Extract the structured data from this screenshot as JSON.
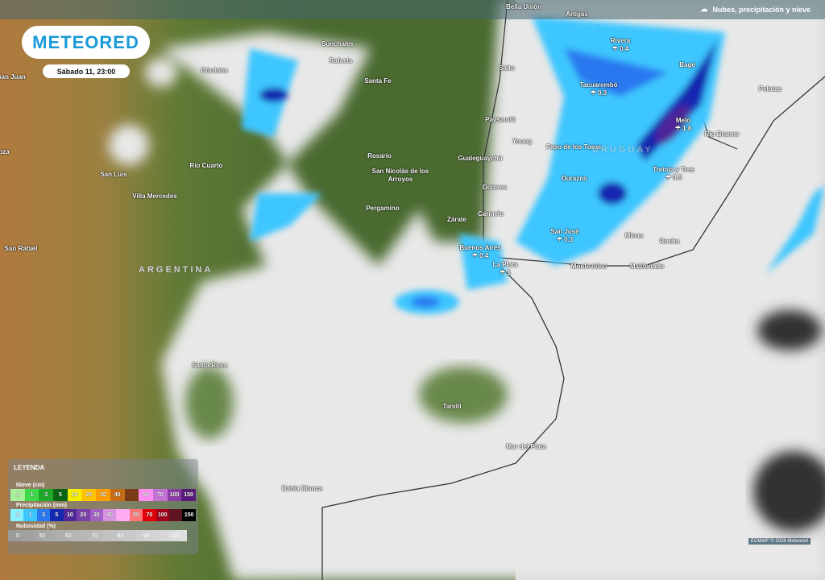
{
  "header": {
    "layer_title": "Nubes, precipitación y nieve",
    "layer_icon": "cloud-rain-icon"
  },
  "brand": {
    "logo": "METEORED",
    "datetime": "Sábado 11, 23:00"
  },
  "map": {
    "countries": [
      "ARGENTINA",
      "URUGUAY"
    ],
    "cities": [
      {
        "name": "Bella Unión"
      },
      {
        "name": "Artigas"
      },
      {
        "name": "Rivera",
        "precip": "0.4"
      },
      {
        "name": "Bagé"
      },
      {
        "name": "Pelotas"
      },
      {
        "name": "Salto"
      },
      {
        "name": "Tacuarembó",
        "precip": "0.3"
      },
      {
        "name": "Paysandú"
      },
      {
        "name": "Melo",
        "precip": "1.8"
      },
      {
        "name": "Young"
      },
      {
        "name": "Río Branco"
      },
      {
        "name": "Paso de los Toros"
      },
      {
        "name": "Gualeguaychú"
      },
      {
        "name": "Treinta y Tres",
        "precip": "0.5"
      },
      {
        "name": "Durazno"
      },
      {
        "name": "Dolores"
      },
      {
        "name": "Carmelo"
      },
      {
        "name": "Zárate"
      },
      {
        "name": "San José",
        "precip": "0.3"
      },
      {
        "name": "Minas"
      },
      {
        "name": "Rocha"
      },
      {
        "name": "Buenos Aires",
        "precip": "0.4"
      },
      {
        "name": "La Plata",
        "precip": "1"
      },
      {
        "name": "Montevideo"
      },
      {
        "name": "Maldonado"
      },
      {
        "name": "Sunchales"
      },
      {
        "name": "Rafaela"
      },
      {
        "name": "Córdoba"
      },
      {
        "name": "Santa Fe"
      },
      {
        "name": "San Juan"
      },
      {
        "name": "Rosario"
      },
      {
        "name": "San Nicolás de los Arroyos"
      },
      {
        "name": "Río Cuarto"
      },
      {
        "name": "San Luis"
      },
      {
        "name": "Villa Mercedes"
      },
      {
        "name": "Pergamino"
      },
      {
        "name": "San Rafael"
      },
      {
        "name": "Santa Rosa"
      },
      {
        "name": "Tandil"
      },
      {
        "name": "Mar del Plata"
      },
      {
        "name": "Bahía Blanca"
      },
      {
        "name": "oza"
      }
    ],
    "precip_icon": "rain-icon"
  },
  "legend": {
    "title": "LEYENDA",
    "snow": {
      "label": "Nieve (cm)",
      "steps": [
        {
          "v": ".2",
          "c": "#a8f09a"
        },
        {
          "v": "1",
          "c": "#3ed84a"
        },
        {
          "v": "3",
          "c": "#1fa82a"
        },
        {
          "v": "5",
          "c": "#0a6612"
        },
        {
          "v": "10",
          "c": "#f6f000"
        },
        {
          "v": "20",
          "c": "#ffc400"
        },
        {
          "v": "30",
          "c": "#ff9e00"
        },
        {
          "v": "40",
          "c": "#c46c18"
        },
        {
          "v": "",
          "c": "#7a3c16"
        },
        {
          "v": "50",
          "c": "#ff8ef0"
        },
        {
          "v": "70",
          "c": "#c272d4"
        },
        {
          "v": "100",
          "c": "#8a3ea4"
        },
        {
          "v": "150",
          "c": "#571a78"
        }
      ]
    },
    "precip": {
      "label": "Precipitación (mm)",
      "steps": [
        {
          "v": ".2",
          "c": "#8af2ff"
        },
        {
          "v": "1",
          "c": "#3cc6ff"
        },
        {
          "v": "3",
          "c": "#2a78f0"
        },
        {
          "v": "5",
          "c": "#1428b0"
        },
        {
          "v": "10",
          "c": "#50289a"
        },
        {
          "v": "20",
          "c": "#7842a8"
        },
        {
          "v": "30",
          "c": "#a462c4"
        },
        {
          "v": "40",
          "c": "#d892e2"
        },
        {
          "v": "",
          "c": "#ffaaf2"
        },
        {
          "v": "50",
          "c": "#ff7676"
        },
        {
          "v": "70",
          "c": "#e00008"
        },
        {
          "v": "100",
          "c": "#a00018"
        },
        {
          "v": "",
          "c": "#5e1422"
        },
        {
          "v": "150",
          "c": "#000000"
        }
      ]
    },
    "cloud": {
      "label": "Nubosidad (%)",
      "ticks": [
        "0",
        "50",
        "60",
        "70",
        "80",
        "90",
        "100"
      ]
    }
  },
  "credit": "ECMWF © 2026 Meteored"
}
